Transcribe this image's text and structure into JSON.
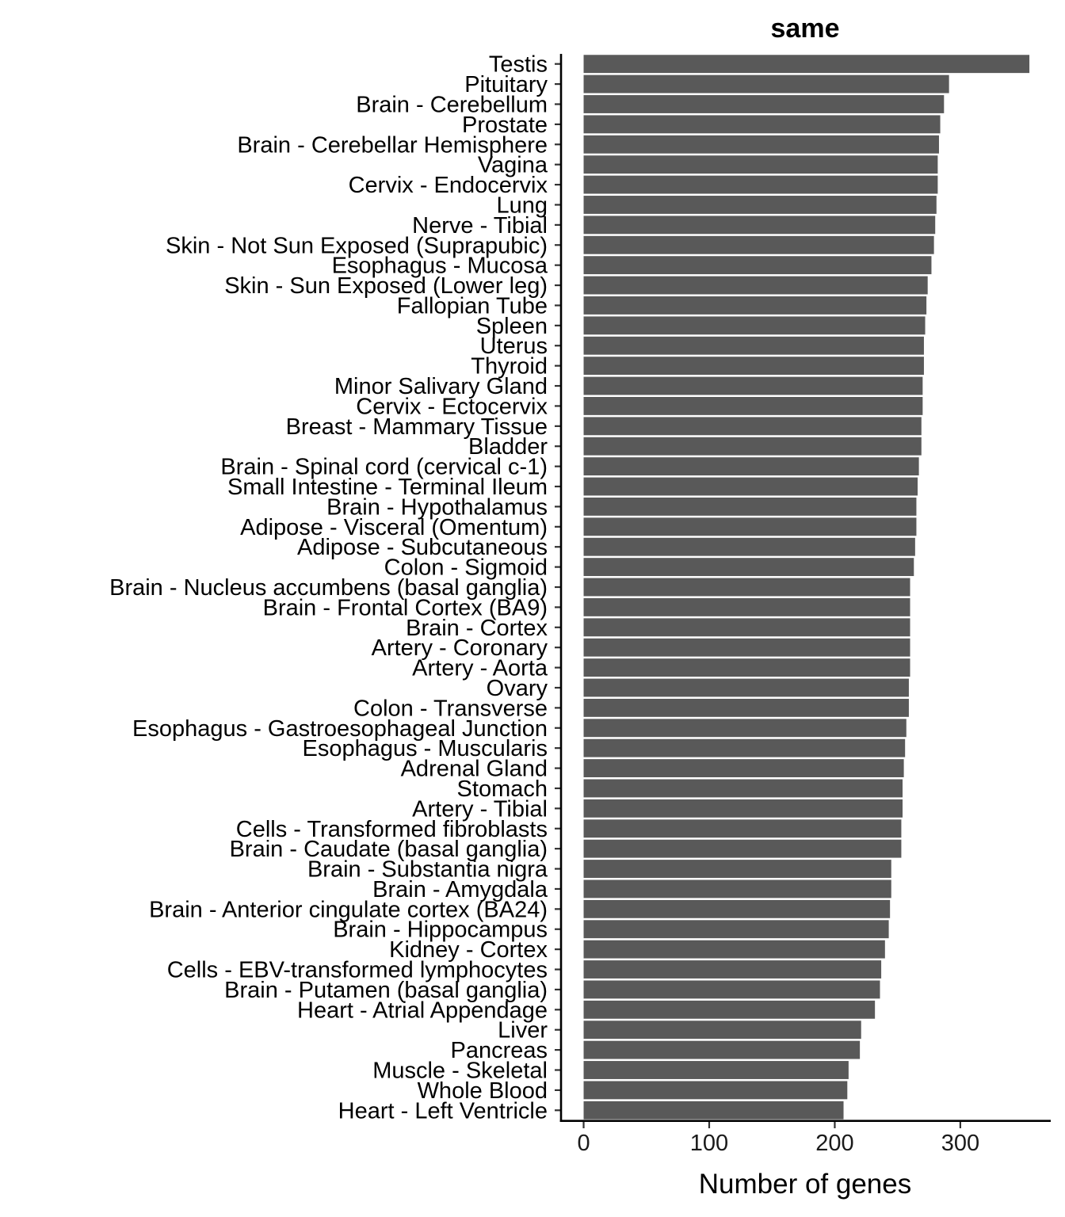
{
  "chart_data": {
    "type": "bar",
    "orientation": "horizontal",
    "title": "same",
    "xlabel": "Number of genes",
    "ylabel": "",
    "xlim": [
      -18,
      372
    ],
    "xticks": [
      0,
      100,
      200,
      300
    ],
    "grid": false,
    "bar_color": "#595959",
    "categories": [
      "Testis",
      "Pituitary",
      "Brain - Cerebellum",
      "Prostate",
      "Brain - Cerebellar Hemisphere",
      "Vagina",
      "Cervix - Endocervix",
      "Lung",
      "Nerve - Tibial",
      "Skin - Not Sun Exposed (Suprapubic)",
      "Esophagus - Mucosa",
      "Skin - Sun Exposed (Lower leg)",
      "Fallopian Tube",
      "Spleen",
      "Uterus",
      "Thyroid",
      "Minor Salivary Gland",
      "Cervix - Ectocervix",
      "Breast - Mammary Tissue",
      "Bladder",
      "Brain - Spinal cord (cervical c-1)",
      "Small Intestine - Terminal Ileum",
      "Brain - Hypothalamus",
      "Adipose - Visceral (Omentum)",
      "Adipose - Subcutaneous",
      "Colon - Sigmoid",
      "Brain - Nucleus accumbens (basal ganglia)",
      "Brain - Frontal Cortex (BA9)",
      "Brain - Cortex",
      "Artery - Coronary",
      "Artery - Aorta",
      "Ovary",
      "Colon - Transverse",
      "Esophagus - Gastroesophageal Junction",
      "Esophagus - Muscularis",
      "Adrenal Gland",
      "Stomach",
      "Artery - Tibial",
      "Cells - Transformed fibroblasts",
      "Brain - Caudate (basal ganglia)",
      "Brain - Substantia nigra",
      "Brain - Amygdala",
      "Brain - Anterior cingulate cortex (BA24)",
      "Brain - Hippocampus",
      "Kidney - Cortex",
      "Cells - EBV-transformed lymphocytes",
      "Brain - Putamen (basal ganglia)",
      "Heart - Atrial Appendage",
      "Liver",
      "Pancreas",
      "Muscle - Skeletal",
      "Whole Blood",
      "Heart - Left Ventricle"
    ],
    "values": [
      355,
      291,
      287,
      284,
      283,
      282,
      282,
      281,
      280,
      279,
      277,
      274,
      273,
      272,
      271,
      271,
      270,
      270,
      269,
      269,
      267,
      266,
      265,
      265,
      264,
      263,
      260,
      260,
      260,
      260,
      260,
      259,
      259,
      257,
      256,
      255,
      254,
      254,
      253,
      253,
      245,
      245,
      244,
      243,
      240,
      237,
      236,
      232,
      221,
      220,
      211,
      210,
      207
    ]
  }
}
